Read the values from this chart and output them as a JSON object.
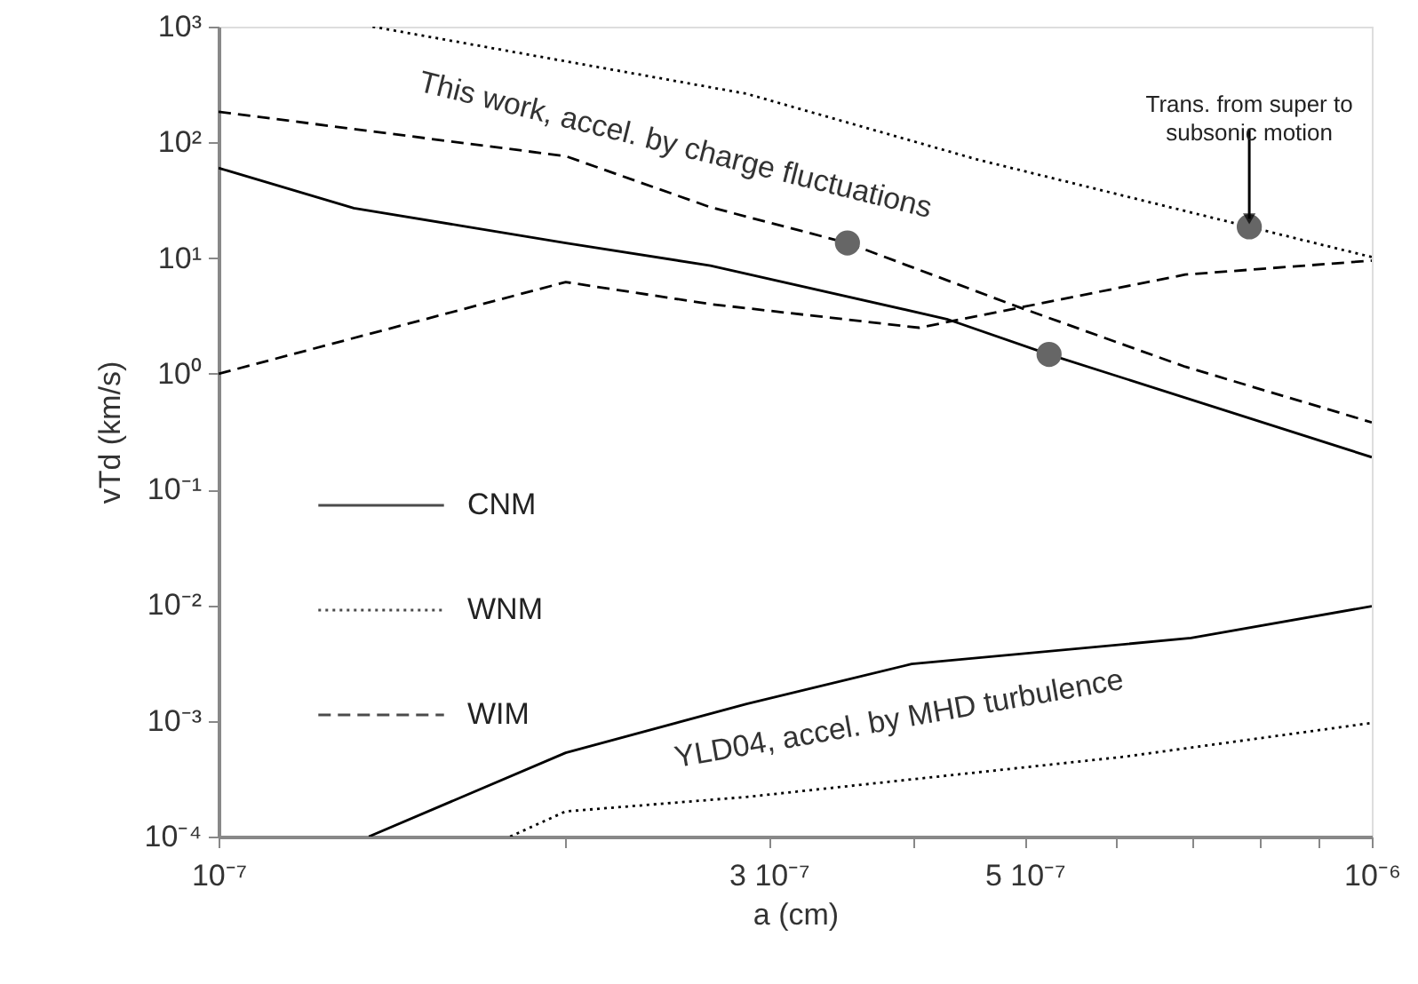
{
  "chart_data": {
    "type": "line",
    "xlabel": "a (cm)",
    "ylabel": "vTd (km/s)",
    "log": "xy",
    "grid": false,
    "legend": "left",
    "xlim": [
      1e-07,
      1e-06
    ],
    "ylim": [
      0.0001,
      1000
    ],
    "xticks": [
      {
        "value": 1e-07,
        "label": "10⁻⁷"
      },
      {
        "value": 2e-07,
        "label": null
      },
      {
        "value": 3e-07,
        "label": "3 10⁻⁷"
      },
      {
        "value": 4e-07,
        "label": null
      },
      {
        "value": 5e-07,
        "label": "5 10⁻⁷"
      },
      {
        "value": 6e-07,
        "label": null
      },
      {
        "value": 7e-07,
        "label": null
      },
      {
        "value": 8e-07,
        "label": null
      },
      {
        "value": 9e-07,
        "label": null
      },
      {
        "value": 1e-06,
        "label": "10⁻⁶"
      }
    ],
    "yticks": [
      {
        "value": 0.0001,
        "label": "10⁻⁴"
      },
      {
        "value": 0.001,
        "label": "10⁻³"
      },
      {
        "value": 0.01,
        "label": "10⁻²"
      },
      {
        "value": 0.1,
        "label": "10⁻¹"
      },
      {
        "value": 1,
        "label": "10⁰"
      },
      {
        "value": 10,
        "label": "10¹"
      },
      {
        "value": 100,
        "label": "10²"
      },
      {
        "value": 1000,
        "label": "10³"
      }
    ],
    "series": [
      {
        "name": "CNM",
        "color": "#000000",
        "line_style": "solid",
        "x": [
          1e-07,
          1.31e-07,
          2e-07,
          2.67e-07,
          4.28e-07,
          5.25e-07,
          1e-06
        ],
        "values": [
          60,
          27,
          13.5,
          8.6,
          2.97,
          1.47,
          0.19
        ]
      },
      {
        "name": "WNM",
        "color": "#000000",
        "line_style": "dotted",
        "x": [
          1.36e-07,
          2.87e-07,
          4.55e-07,
          7.83e-07,
          1e-06
        ],
        "values": [
          1000,
          263,
          71,
          18.6,
          10.2
        ]
      },
      {
        "name": "WIM",
        "color": "#000000",
        "line_style": "dashed",
        "x": [
          1e-07,
          2e-07,
          2.67e-07,
          3.51e-07,
          4.93e-07,
          6.89e-07,
          1e-06
        ],
        "values": [
          184,
          76,
          27.5,
          13.5,
          3.8,
          1.15,
          0.38
        ]
      },
      {
        "color": "#000000",
        "line_style": "dashed",
        "x": [
          1e-07,
          2e-07,
          2.67e-07,
          4.05e-07,
          6.89e-07,
          1e-06
        ],
        "values": [
          1.0,
          6.2,
          4.0,
          2.5,
          7.2,
          9.5
        ]
      },
      {
        "color": "#000000",
        "line_style": "solid",
        "x": [
          1.35e-07,
          2e-07,
          2.87e-07,
          3.99e-07,
          6.97e-07,
          1e-06
        ],
        "values": [
          0.0001,
          0.00053,
          0.0014,
          0.0031,
          0.0052,
          0.0098
        ]
      },
      {
        "color": "#000000",
        "line_style": "dotted",
        "x": [
          1.79e-07,
          2e-07,
          2.87e-07,
          6.1e-07,
          1e-06
        ],
        "values": [
          0.0001,
          0.000165,
          0.00022,
          0.00049,
          0.00096
        ]
      },
      {
        "type": "scatter",
        "color": "#666666",
        "marker": "circle",
        "x": [
          3.51e-07,
          5.25e-07,
          7.83e-07
        ],
        "values": [
          13.5,
          1.47,
          18.6
        ]
      }
    ],
    "annotations": [
      "This work, accel. by charge fluctuations",
      "YLD04, accel. by MHD turbulence",
      {
        "text": "Trans. from super to\nsubsonic motion",
        "x": 7.83e-07,
        "y": 18.6
      }
    ]
  }
}
